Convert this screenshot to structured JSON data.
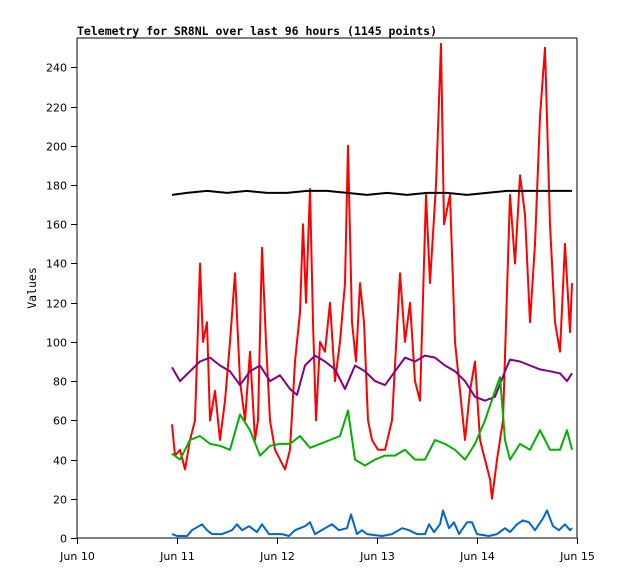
{
  "chart_data": {
    "type": "line",
    "title": "Telemetry for SR8NL over last 96 hours (1145 points)",
    "xlabel": "",
    "ylabel": "Values",
    "x_unit": "days since Jun 10 00:00",
    "xlim": [
      0,
      5
    ],
    "ylim": [
      0,
      255
    ],
    "x_ticks": [
      {
        "v": 0,
        "label": "Jun 10"
      },
      {
        "v": 1,
        "label": "Jun 11"
      },
      {
        "v": 2,
        "label": "Jun 12"
      },
      {
        "v": 3,
        "label": "Jun 13"
      },
      {
        "v": 4,
        "label": "Jun 14"
      },
      {
        "v": 5,
        "label": "Jun 15"
      }
    ],
    "y_ticks": [
      0,
      20,
      40,
      60,
      80,
      100,
      120,
      140,
      160,
      180,
      200,
      220,
      240
    ],
    "grid": false,
    "series": [
      {
        "name": "red",
        "color": "#ff0000",
        "points": [
          [
            0.95,
            58
          ],
          [
            0.98,
            42
          ],
          [
            1.03,
            45
          ],
          [
            1.08,
            35
          ],
          [
            1.13,
            50
          ],
          [
            1.18,
            60
          ],
          [
            1.23,
            140
          ],
          [
            1.26,
            100
          ],
          [
            1.3,
            110
          ],
          [
            1.33,
            60
          ],
          [
            1.38,
            75
          ],
          [
            1.43,
            50
          ],
          [
            1.48,
            70
          ],
          [
            1.53,
            100
          ],
          [
            1.58,
            135
          ],
          [
            1.63,
            80
          ],
          [
            1.68,
            60
          ],
          [
            1.73,
            95
          ],
          [
            1.78,
            50
          ],
          [
            1.81,
            60
          ],
          [
            1.85,
            148
          ],
          [
            1.89,
            100
          ],
          [
            1.93,
            60
          ],
          [
            1.98,
            45
          ],
          [
            2.03,
            40
          ],
          [
            2.08,
            35
          ],
          [
            2.13,
            45
          ],
          [
            2.18,
            90
          ],
          [
            2.23,
            115
          ],
          [
            2.26,
            160
          ],
          [
            2.29,
            120
          ],
          [
            2.33,
            178
          ],
          [
            2.36,
            110
          ],
          [
            2.39,
            60
          ],
          [
            2.43,
            100
          ],
          [
            2.48,
            95
          ],
          [
            2.53,
            120
          ],
          [
            2.58,
            80
          ],
          [
            2.63,
            100
          ],
          [
            2.68,
            130
          ],
          [
            2.71,
            200
          ],
          [
            2.75,
            110
          ],
          [
            2.79,
            90
          ],
          [
            2.83,
            130
          ],
          [
            2.87,
            110
          ],
          [
            2.91,
            60
          ],
          [
            2.95,
            50
          ],
          [
            3.01,
            45
          ],
          [
            3.08,
            45
          ],
          [
            3.15,
            60
          ],
          [
            3.23,
            135
          ],
          [
            3.28,
            100
          ],
          [
            3.33,
            120
          ],
          [
            3.38,
            80
          ],
          [
            3.43,
            70
          ],
          [
            3.49,
            175
          ],
          [
            3.53,
            130
          ],
          [
            3.59,
            180
          ],
          [
            3.64,
            252
          ],
          [
            3.67,
            160
          ],
          [
            3.73,
            175
          ],
          [
            3.78,
            100
          ],
          [
            3.83,
            75
          ],
          [
            3.88,
            50
          ],
          [
            3.93,
            75
          ],
          [
            3.98,
            90
          ],
          [
            4.03,
            50
          ],
          [
            4.08,
            40
          ],
          [
            4.13,
            30
          ],
          [
            4.15,
            20
          ],
          [
            4.2,
            40
          ],
          [
            4.26,
            60
          ],
          [
            4.33,
            175
          ],
          [
            4.38,
            140
          ],
          [
            4.43,
            185
          ],
          [
            4.48,
            165
          ],
          [
            4.53,
            110
          ],
          [
            4.58,
            150
          ],
          [
            4.63,
            215
          ],
          [
            4.68,
            250
          ],
          [
            4.73,
            160
          ],
          [
            4.78,
            110
          ],
          [
            4.83,
            95
          ],
          [
            4.88,
            150
          ],
          [
            4.93,
            105
          ],
          [
            4.95,
            130
          ]
        ]
      },
      {
        "name": "black",
        "color": "#000000",
        "points": [
          [
            0.95,
            175
          ],
          [
            1.1,
            176
          ],
          [
            1.3,
            177
          ],
          [
            1.5,
            176
          ],
          [
            1.7,
            177
          ],
          [
            1.9,
            176
          ],
          [
            2.1,
            176
          ],
          [
            2.3,
            177
          ],
          [
            2.5,
            177
          ],
          [
            2.7,
            176
          ],
          [
            2.9,
            175
          ],
          [
            3.1,
            176
          ],
          [
            3.3,
            175
          ],
          [
            3.5,
            176
          ],
          [
            3.7,
            176
          ],
          [
            3.9,
            175
          ],
          [
            4.1,
            176
          ],
          [
            4.3,
            177
          ],
          [
            4.5,
            177
          ],
          [
            4.7,
            177
          ],
          [
            4.95,
            177
          ]
        ]
      },
      {
        "name": "purple",
        "color": "#800080",
        "points": [
          [
            0.95,
            87
          ],
          [
            1.03,
            80
          ],
          [
            1.13,
            85
          ],
          [
            1.23,
            90
          ],
          [
            1.33,
            92
          ],
          [
            1.43,
            88
          ],
          [
            1.53,
            85
          ],
          [
            1.63,
            78
          ],
          [
            1.73,
            85
          ],
          [
            1.83,
            88
          ],
          [
            1.93,
            80
          ],
          [
            2.03,
            83
          ],
          [
            2.13,
            76
          ],
          [
            2.2,
            73
          ],
          [
            2.28,
            88
          ],
          [
            2.38,
            93
          ],
          [
            2.48,
            90
          ],
          [
            2.58,
            86
          ],
          [
            2.68,
            76
          ],
          [
            2.78,
            88
          ],
          [
            2.88,
            85
          ],
          [
            2.98,
            80
          ],
          [
            3.08,
            78
          ],
          [
            3.18,
            85
          ],
          [
            3.28,
            92
          ],
          [
            3.38,
            90
          ],
          [
            3.48,
            93
          ],
          [
            3.58,
            92
          ],
          [
            3.68,
            88
          ],
          [
            3.78,
            85
          ],
          [
            3.88,
            80
          ],
          [
            3.98,
            72
          ],
          [
            4.08,
            70
          ],
          [
            4.18,
            72
          ],
          [
            4.28,
            85
          ],
          [
            4.33,
            91
          ],
          [
            4.43,
            90
          ],
          [
            4.53,
            88
          ],
          [
            4.63,
            86
          ],
          [
            4.73,
            85
          ],
          [
            4.83,
            84
          ],
          [
            4.9,
            80
          ],
          [
            4.95,
            84
          ]
        ]
      },
      {
        "name": "green",
        "color": "#00b000",
        "points": [
          [
            0.95,
            43
          ],
          [
            1.03,
            40
          ],
          [
            1.13,
            50
          ],
          [
            1.23,
            52
          ],
          [
            1.33,
            48
          ],
          [
            1.43,
            47
          ],
          [
            1.53,
            45
          ],
          [
            1.63,
            63
          ],
          [
            1.73,
            55
          ],
          [
            1.83,
            42
          ],
          [
            1.93,
            47
          ],
          [
            2.03,
            48
          ],
          [
            2.13,
            48
          ],
          [
            2.23,
            52
          ],
          [
            2.33,
            46
          ],
          [
            2.43,
            48
          ],
          [
            2.53,
            50
          ],
          [
            2.63,
            52
          ],
          [
            2.71,
            65
          ],
          [
            2.78,
            40
          ],
          [
            2.88,
            37
          ],
          [
            2.98,
            40
          ],
          [
            3.08,
            42
          ],
          [
            3.18,
            42
          ],
          [
            3.28,
            45
          ],
          [
            3.38,
            40
          ],
          [
            3.48,
            40
          ],
          [
            3.58,
            50
          ],
          [
            3.68,
            48
          ],
          [
            3.78,
            45
          ],
          [
            3.88,
            40
          ],
          [
            3.98,
            48
          ],
          [
            4.08,
            60
          ],
          [
            4.18,
            75
          ],
          [
            4.23,
            82
          ],
          [
            4.28,
            50
          ],
          [
            4.33,
            40
          ],
          [
            4.43,
            48
          ],
          [
            4.53,
            45
          ],
          [
            4.63,
            55
          ],
          [
            4.73,
            45
          ],
          [
            4.83,
            45
          ],
          [
            4.9,
            55
          ],
          [
            4.95,
            45
          ]
        ]
      },
      {
        "name": "blue",
        "color": "#0066cc",
        "points": [
          [
            0.95,
            2
          ],
          [
            1.0,
            1
          ],
          [
            1.1,
            1
          ],
          [
            1.15,
            4
          ],
          [
            1.25,
            7
          ],
          [
            1.3,
            4
          ],
          [
            1.35,
            2
          ],
          [
            1.45,
            2
          ],
          [
            1.55,
            4
          ],
          [
            1.6,
            7
          ],
          [
            1.65,
            4
          ],
          [
            1.72,
            6
          ],
          [
            1.8,
            3
          ],
          [
            1.85,
            7
          ],
          [
            1.92,
            2
          ],
          [
            2.05,
            2
          ],
          [
            2.12,
            1
          ],
          [
            2.18,
            4
          ],
          [
            2.28,
            6
          ],
          [
            2.33,
            8
          ],
          [
            2.38,
            2
          ],
          [
            2.48,
            5
          ],
          [
            2.55,
            7
          ],
          [
            2.62,
            4
          ],
          [
            2.7,
            5
          ],
          [
            2.74,
            12
          ],
          [
            2.8,
            2
          ],
          [
            2.85,
            4
          ],
          [
            2.9,
            2
          ],
          [
            3.05,
            1
          ],
          [
            3.15,
            2
          ],
          [
            3.25,
            5
          ],
          [
            3.32,
            4
          ],
          [
            3.4,
            2
          ],
          [
            3.48,
            2
          ],
          [
            3.52,
            7
          ],
          [
            3.57,
            3
          ],
          [
            3.63,
            7
          ],
          [
            3.66,
            14
          ],
          [
            3.72,
            5
          ],
          [
            3.77,
            8
          ],
          [
            3.82,
            2
          ],
          [
            3.9,
            8
          ],
          [
            3.95,
            8
          ],
          [
            4.0,
            2
          ],
          [
            4.12,
            1
          ],
          [
            4.2,
            2
          ],
          [
            4.28,
            5
          ],
          [
            4.33,
            3
          ],
          [
            4.4,
            7
          ],
          [
            4.46,
            9
          ],
          [
            4.52,
            8
          ],
          [
            4.58,
            4
          ],
          [
            4.66,
            10
          ],
          [
            4.7,
            14
          ],
          [
            4.76,
            6
          ],
          [
            4.82,
            4
          ],
          [
            4.88,
            7
          ],
          [
            4.93,
            4
          ],
          [
            4.95,
            5
          ]
        ]
      }
    ]
  }
}
